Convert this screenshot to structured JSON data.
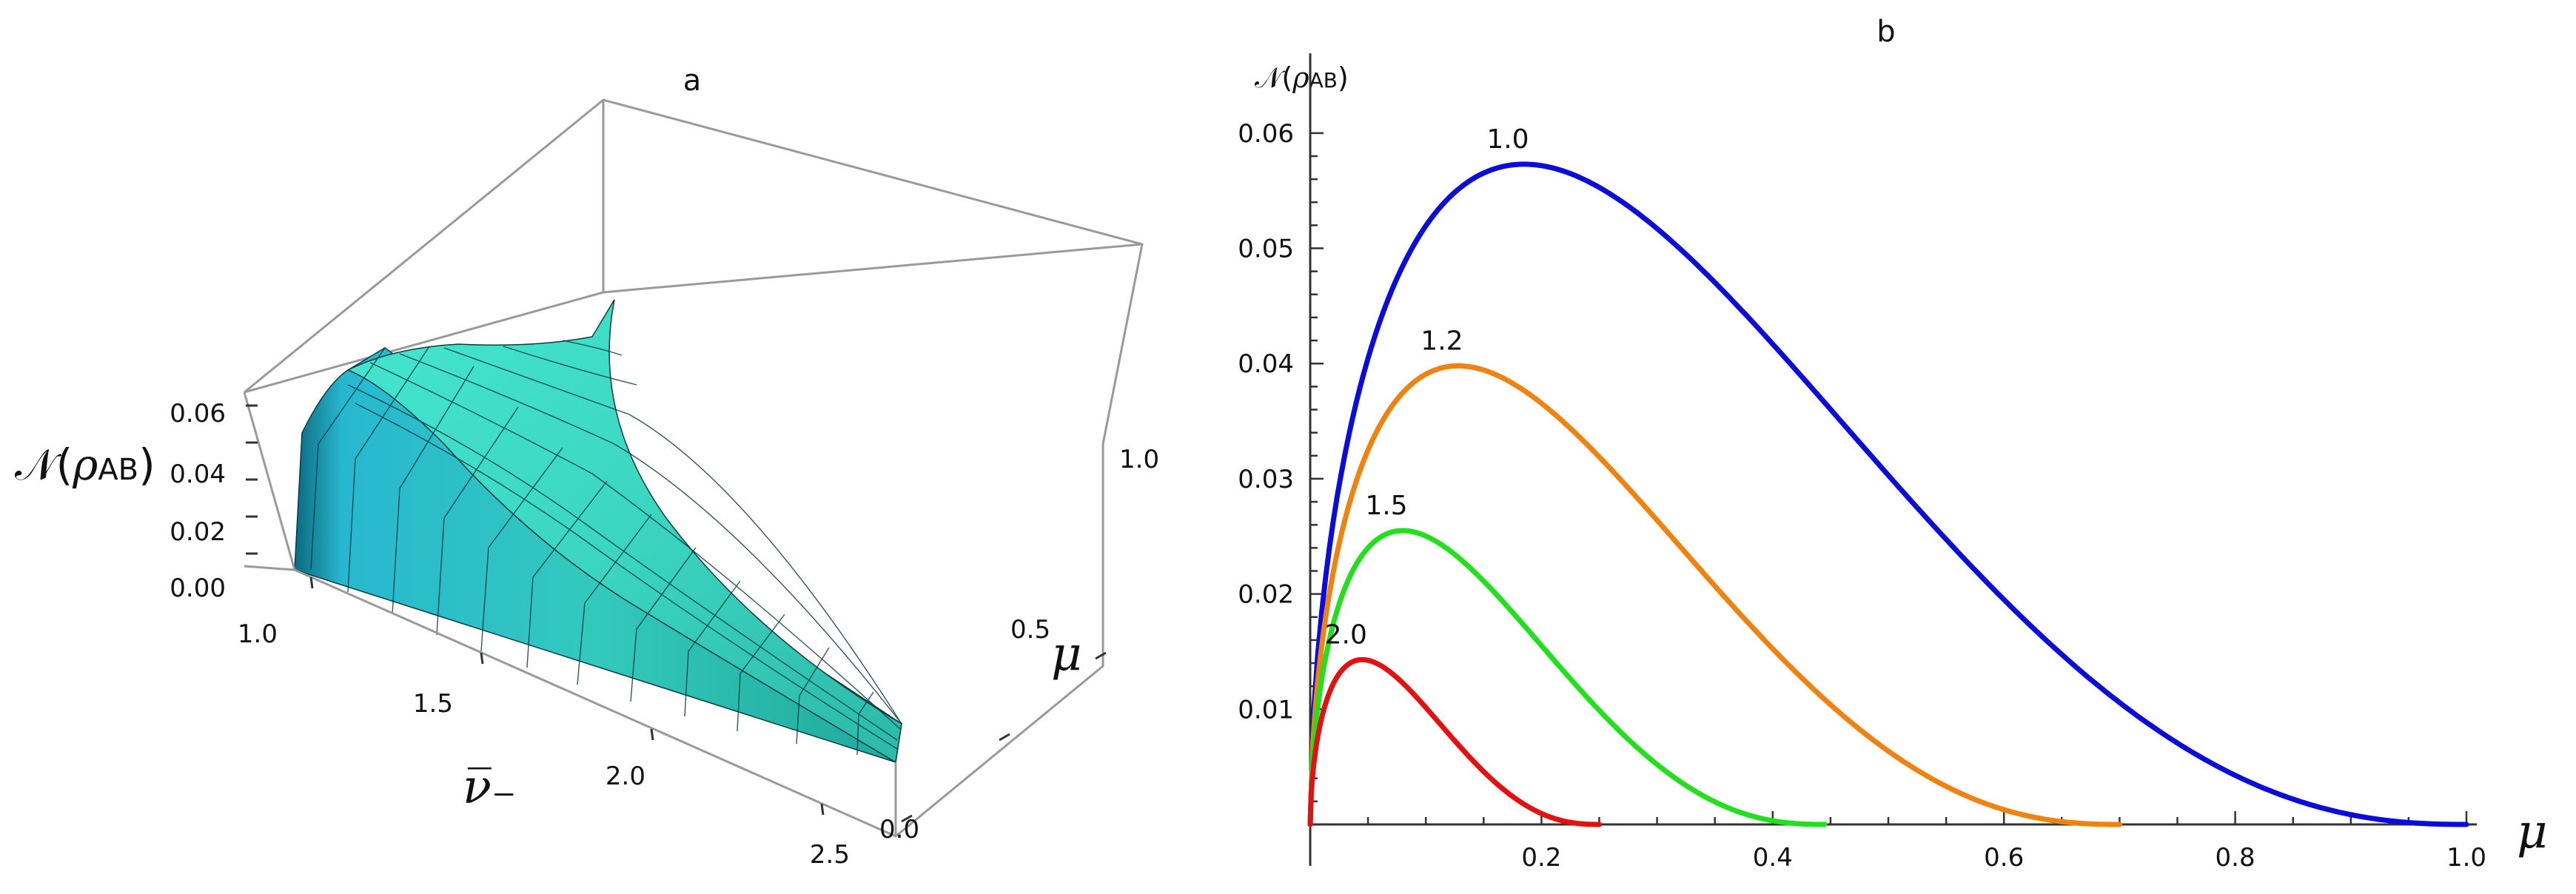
{
  "chart_data": [
    {
      "type": "surface",
      "panel_title": "a",
      "zlabel_prefix": "𝒩(",
      "zlabel_rho": "ρ",
      "zlabel_sub": "AB",
      "zlabel_suffix": ")",
      "xlabel": "ν̅₋",
      "ylabel": "μ",
      "x_range": [
        1.0,
        2.5
      ],
      "y_range": [
        0.0,
        1.0
      ],
      "z_range": [
        0.0,
        0.065
      ],
      "x_ticks": [
        "1.0",
        "1.5",
        "2.0",
        "2.5"
      ],
      "y_ticks": [
        "0.0",
        "0.5",
        "1.0"
      ],
      "z_ticks": [
        "0.00",
        "0.02",
        "0.04",
        "0.06"
      ],
      "surface_color": "#3fd9c3",
      "surface_shadow": "#0d6f86",
      "box_color": "#9a9a9a"
    },
    {
      "type": "line",
      "panel_title": "b",
      "ylabel_prefix": "𝒩(",
      "ylabel_rho": "ρ",
      "ylabel_sub": "AB",
      "ylabel_suffix": ")",
      "xlabel": "μ",
      "xlim": [
        0.0,
        1.0
      ],
      "ylim": [
        0.0,
        0.065
      ],
      "x_ticks": [
        "0.2",
        "0.4",
        "0.6",
        "0.8",
        "1.0"
      ],
      "x_tick_values": [
        0.2,
        0.4,
        0.6,
        0.8,
        1.0
      ],
      "y_ticks": [
        "0.01",
        "0.02",
        "0.03",
        "0.04",
        "0.05",
        "0.06"
      ],
      "y_tick_values": [
        0.01,
        0.02,
        0.03,
        0.04,
        0.05,
        0.06
      ],
      "series": [
        {
          "name": "1.0",
          "label": "1.0",
          "color": "#0b0bdc",
          "peak_x": 0.185,
          "peak_y": 0.0573,
          "end_x": 1.0
        },
        {
          "name": "1.2",
          "label": "1.2",
          "color": "#f0820f",
          "peak_x": 0.128,
          "peak_y": 0.0398,
          "end_x": 0.7
        },
        {
          "name": "1.5",
          "label": "1.5",
          "color": "#22e01c",
          "peak_x": 0.08,
          "peak_y": 0.0255,
          "end_x": 0.445
        },
        {
          "name": "2.0",
          "label": "2.0",
          "color": "#e31111",
          "peak_x": 0.045,
          "peak_y": 0.0143,
          "end_x": 0.25
        }
      ]
    }
  ]
}
